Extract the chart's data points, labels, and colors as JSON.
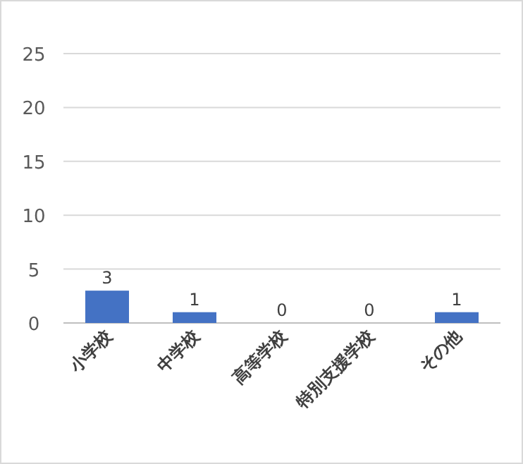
{
  "chart_data": {
    "type": "bar",
    "categories": [
      "小学校",
      "中学校",
      "高等学校",
      "特別支援学校",
      "その他"
    ],
    "values": [
      3,
      1,
      0,
      0,
      1
    ],
    "color": "#4472c4",
    "ylim": [
      0,
      25
    ],
    "yticks": [
      0,
      5,
      10,
      15,
      20,
      25
    ],
    "grid": "y",
    "data_labels": true
  }
}
